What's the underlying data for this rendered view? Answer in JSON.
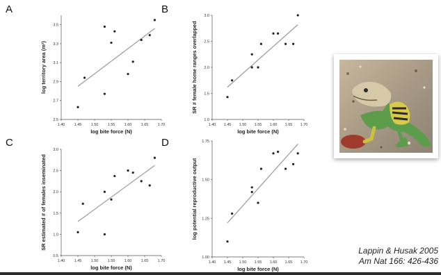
{
  "chart_data": [
    {
      "type": "scatter",
      "panel": "A",
      "xlabel": "log bite force (N)",
      "ylabel": "log territory area (m²)",
      "xlim": [
        1.4,
        1.7
      ],
      "ylim": [
        2.5,
        3.6
      ],
      "xticks": [
        "1.40",
        "1.45",
        "1.50",
        "1.55",
        "1.60",
        "1.65",
        "1.70"
      ],
      "yticks": [
        "2.5",
        "2.7",
        "2.9",
        "3.1",
        "3.3",
        "3.5"
      ],
      "x": [
        1.45,
        1.47,
        1.53,
        1.53,
        1.55,
        1.56,
        1.6,
        1.615,
        1.64,
        1.665,
        1.68
      ],
      "y": [
        2.63,
        2.94,
        3.48,
        2.77,
        3.31,
        3.43,
        2.98,
        3.11,
        3.34,
        3.39,
        3.55
      ],
      "fit": {
        "x": [
          1.45,
          1.68
        ],
        "y": [
          2.85,
          3.46
        ]
      }
    },
    {
      "type": "scatter",
      "panel": "B",
      "xlabel": "log bite force (N)",
      "ylabel": "SR # female home ranges overlapped",
      "xlim": [
        1.4,
        1.7
      ],
      "ylim": [
        1.0,
        3.0
      ],
      "xticks": [
        "1.40",
        "1.45",
        "1.50",
        "1.55",
        "1.60",
        "1.65",
        "1.70"
      ],
      "yticks": [
        "1.0",
        "1.5",
        "2.0",
        "2.5",
        "3.0"
      ],
      "x": [
        1.45,
        1.465,
        1.53,
        1.53,
        1.55,
        1.56,
        1.6,
        1.615,
        1.64,
        1.665,
        1.68
      ],
      "y": [
        1.43,
        1.75,
        2.0,
        2.25,
        2.0,
        2.45,
        2.65,
        2.65,
        2.45,
        2.45,
        3.0
      ],
      "fit": {
        "x": [
          1.45,
          1.68
        ],
        "y": [
          1.62,
          2.82
        ]
      }
    },
    {
      "type": "scatter",
      "panel": "C",
      "xlabel": "log bite force (N)",
      "ylabel": "SR estimated # of females inseminated",
      "xlim": [
        1.4,
        1.7
      ],
      "ylim": [
        0.5,
        3.0
      ],
      "xticks": [
        "1.40",
        "1.45",
        "1.50",
        "1.55",
        "1.60",
        "1.65",
        "1.70"
      ],
      "yticks": [
        "0.5",
        "1.0",
        "1.5",
        "2.0",
        "2.5",
        "3.0"
      ],
      "x": [
        1.45,
        1.465,
        1.53,
        1.53,
        1.55,
        1.56,
        1.6,
        1.615,
        1.64,
        1.665,
        1.68
      ],
      "y": [
        1.05,
        1.72,
        2.0,
        1.0,
        1.82,
        2.37,
        2.5,
        2.45,
        2.25,
        2.15,
        2.8
      ],
      "fit": {
        "x": [
          1.45,
          1.68
        ],
        "y": [
          1.3,
          2.62
        ]
      }
    },
    {
      "type": "scatter",
      "panel": "D",
      "xlabel": "log bite force (N)",
      "ylabel": "log potential reproductive output",
      "xlim": [
        1.4,
        1.7
      ],
      "ylim": [
        1.0,
        1.75
      ],
      "xticks": [
        "1.40",
        "1.45",
        "1.50",
        "1.55",
        "1.60",
        "1.65",
        "1.70"
      ],
      "yticks": [
        "1.00",
        "1.25",
        "1.50",
        "1.75"
      ],
      "x": [
        1.45,
        1.465,
        1.53,
        1.53,
        1.55,
        1.56,
        1.6,
        1.615,
        1.64,
        1.665,
        1.68
      ],
      "y": [
        1.1,
        1.28,
        1.45,
        1.42,
        1.35,
        1.57,
        1.67,
        1.68,
        1.57,
        1.6,
        1.67
      ],
      "fit": {
        "x": [
          1.45,
          1.68
        ],
        "y": [
          1.22,
          1.73
        ]
      }
    }
  ],
  "citation": {
    "line1": "Lappin & Husak 2005",
    "line2": "Am Nat 166: 426-436"
  },
  "photo": {
    "icon": "collared-lizard-photo"
  },
  "colors": {
    "points": "#222222",
    "fit_line": "#9a9a9a",
    "axis": "#555555"
  }
}
